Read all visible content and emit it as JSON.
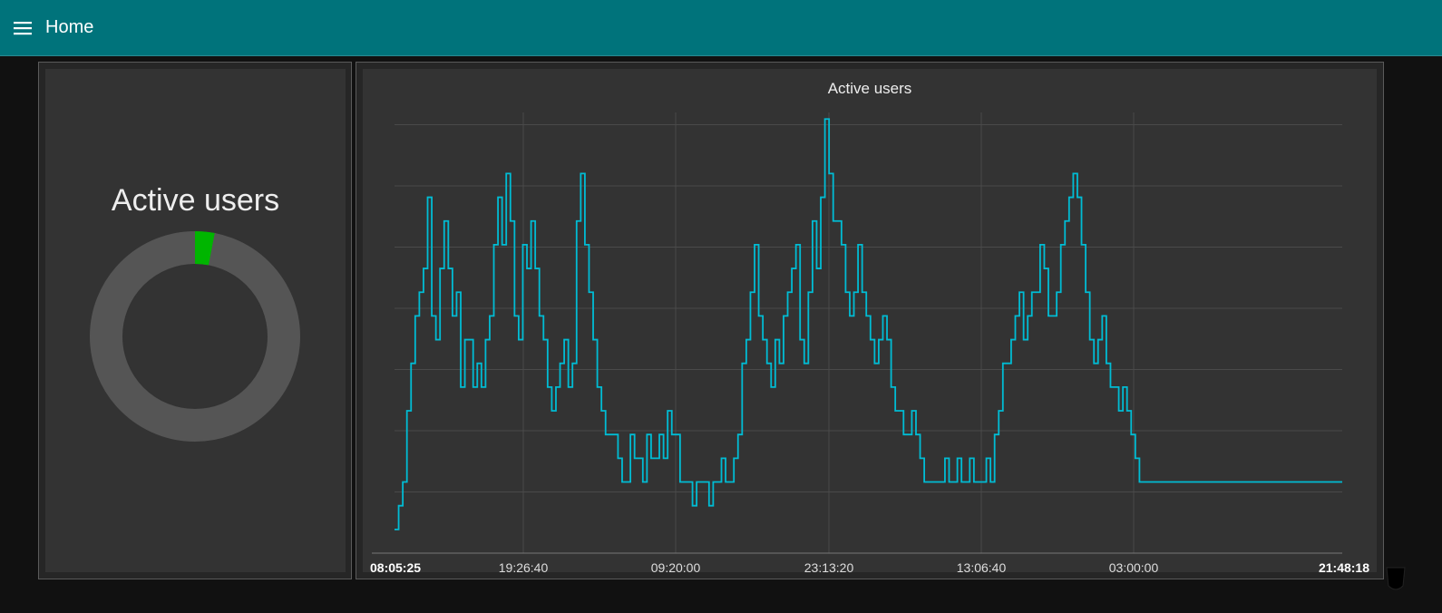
{
  "toolbar": {
    "title": "Home",
    "menu_icon": "hamburger-menu-icon",
    "background": "#00737b"
  },
  "gauge": {
    "title": "Active users",
    "fraction": 0.03,
    "track_color": "#555555",
    "fill_color": "#00b500"
  },
  "chart_data": {
    "type": "line",
    "title": "Active users",
    "xlabel": "",
    "ylabel": "",
    "x_ticks": [
      "08:05:25",
      "19:26:40",
      "09:20:00",
      "23:13:20",
      "13:06:40",
      "03:00:00",
      "21:48:18"
    ],
    "ylim": [
      0,
      18.5
    ],
    "grid": true,
    "line_color": "#00bcd4",
    "series": [
      {
        "values": [
          1,
          2,
          3,
          6,
          8,
          10,
          11,
          12,
          15,
          10,
          9,
          12,
          14,
          12,
          10,
          11,
          7,
          9,
          9,
          7,
          8,
          7,
          9,
          10,
          13,
          15,
          13,
          16,
          14,
          10,
          9,
          13,
          12,
          14,
          12,
          10,
          9,
          7,
          6,
          7,
          8,
          9,
          7,
          8,
          14,
          16,
          13,
          11,
          9,
          7,
          6,
          5,
          5,
          5,
          4,
          3,
          3,
          5,
          4,
          4,
          3,
          5,
          4,
          4,
          5,
          4,
          6,
          5,
          5,
          3,
          3,
          3,
          2,
          3,
          3,
          3,
          2,
          3,
          3,
          4,
          3,
          3,
          4,
          5,
          8,
          9,
          11,
          13,
          10,
          9,
          8,
          7,
          9,
          8,
          10,
          11,
          12,
          13,
          9,
          8,
          11,
          14,
          12,
          15,
          18.3,
          16,
          14,
          14,
          13,
          11,
          10,
          11,
          13,
          11,
          10,
          9,
          8,
          9,
          10,
          9,
          7,
          6,
          6,
          5,
          5,
          6,
          5,
          4,
          3,
          3,
          3,
          3,
          3,
          4,
          3,
          3,
          4,
          3,
          3,
          4,
          3,
          3,
          3,
          4,
          3,
          5,
          6,
          8,
          8,
          9,
          10,
          11,
          9,
          10,
          11,
          11,
          13,
          12,
          10,
          10,
          11,
          13,
          14,
          15,
          16,
          15,
          13,
          11,
          9,
          8,
          9,
          10,
          8,
          7,
          7,
          6,
          7,
          6,
          5,
          4,
          3,
          3,
          3,
          3,
          3,
          3,
          3,
          3,
          3,
          3,
          3,
          3,
          3,
          3,
          3,
          3,
          3,
          3,
          3,
          3,
          3,
          3,
          3,
          3,
          3,
          3,
          3,
          3,
          3,
          3,
          3,
          3,
          3,
          3,
          3,
          3,
          3,
          3,
          3,
          3,
          3,
          3,
          3,
          3,
          3,
          3,
          3,
          3,
          3,
          3
        ]
      }
    ]
  }
}
